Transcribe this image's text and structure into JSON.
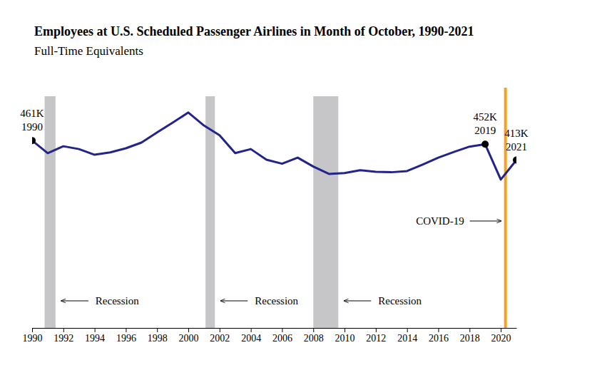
{
  "chart_data": {
    "type": "line",
    "title": "Employees at U.S. Scheduled Passenger Airlines in Month of October, 1990-2021",
    "subtitle": "Full-Time Equivalents",
    "x": [
      1990,
      1991,
      1992,
      1993,
      1994,
      1995,
      1996,
      1997,
      1998,
      1999,
      2000,
      2001,
      2002,
      2003,
      2004,
      2005,
      2006,
      2007,
      2008,
      2009,
      2010,
      2011,
      2012,
      2013,
      2014,
      2015,
      2016,
      2017,
      2018,
      2019,
      2020,
      2021
    ],
    "values": [
      461,
      430,
      447,
      440,
      426,
      432,
      442,
      456,
      481,
      505,
      530,
      498,
      474,
      430,
      440,
      414,
      404,
      419,
      397,
      379,
      381,
      388,
      384,
      383,
      386,
      402,
      419,
      433,
      446,
      452,
      365,
      413
    ],
    "color": "#23238c",
    "xlim": [
      1990,
      2021
    ],
    "xticks": [
      1990,
      1992,
      1994,
      1996,
      1998,
      2000,
      2002,
      2004,
      2006,
      2008,
      2010,
      2012,
      2014,
      2016,
      2018,
      2020
    ],
    "ylim": [
      0,
      570
    ],
    "tick_labels": "x",
    "grid": false,
    "highlights": [
      {
        "x": 1990,
        "value": 461,
        "label": "461K"
      },
      {
        "x": 2019,
        "value": 452,
        "label": "452K"
      },
      {
        "x": 2021,
        "value": 413,
        "label": "413K"
      }
    ],
    "shaded_ranges": [
      {
        "start": 1990.8,
        "end": 1991.5,
        "label": "Recession",
        "color": "#c6c6c8"
      },
      {
        "start": 2001.1,
        "end": 2001.7,
        "label": "Recession",
        "color": "#c6c6c8"
      },
      {
        "start": 2008.0,
        "end": 2009.6,
        "label": "Recession",
        "color": "#c6c6c8"
      }
    ],
    "vertical_lines": [
      {
        "x": 2020.3,
        "label": "COVID-19",
        "color": "#f4a124"
      }
    ]
  }
}
